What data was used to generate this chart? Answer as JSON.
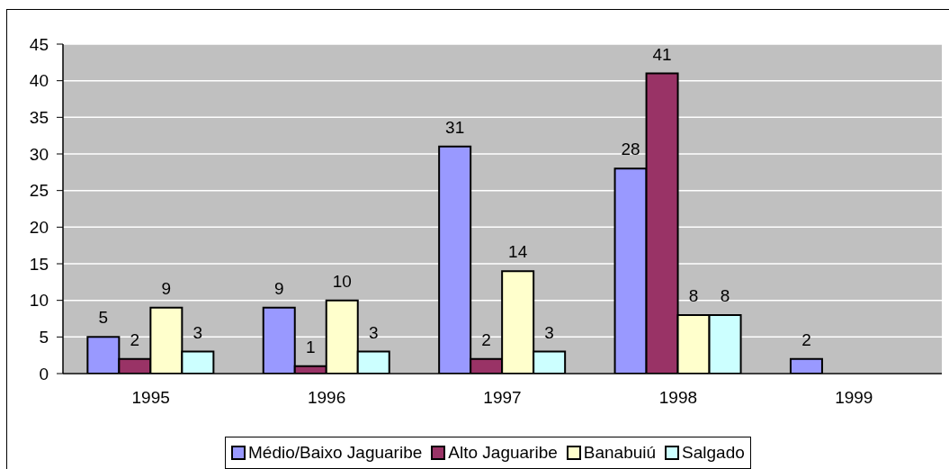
{
  "chart_data": {
    "type": "bar",
    "categories": [
      "1995",
      "1996",
      "1997",
      "1998",
      "1999"
    ],
    "series": [
      {
        "name": "Médio/Baixo Jaguaribe",
        "color": "#9999ff",
        "values": [
          5,
          9,
          31,
          28,
          2
        ]
      },
      {
        "name": "Alto Jaguaribe",
        "color": "#993366",
        "values": [
          2,
          1,
          2,
          41,
          null
        ]
      },
      {
        "name": "Banabuiú",
        "color": "#ffffcc",
        "values": [
          9,
          10,
          14,
          8,
          null
        ]
      },
      {
        "name": "Salgado",
        "color": "#ccffff",
        "values": [
          3,
          3,
          3,
          8,
          null
        ]
      }
    ],
    "ylim": [
      0,
      45
    ],
    "yticks": [
      0,
      5,
      10,
      15,
      20,
      25,
      30,
      35,
      40,
      45
    ],
    "grid": "y",
    "legend": "bottom",
    "data_labels": true
  }
}
